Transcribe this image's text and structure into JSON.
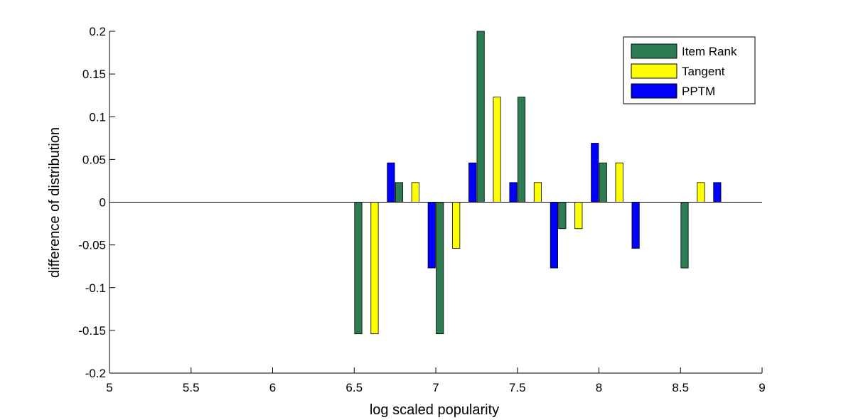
{
  "chart_data": {
    "type": "bar",
    "title": "",
    "xlabel": "log scaled popularity",
    "ylabel": "difference of distribution",
    "xlim": [
      5,
      9
    ],
    "ylim": [
      -0.2,
      0.2
    ],
    "xticks": [
      "5",
      "5.5",
      "6",
      "6.5",
      "7",
      "7.5",
      "8",
      "8.5",
      "9"
    ],
    "yticks": [
      "-0.2",
      "-0.15",
      "-0.1",
      "-0.05",
      "0",
      "0.05",
      "0.1",
      "0.15",
      "0.2"
    ],
    "grid": false,
    "legend_position": "top-right",
    "x": [
      6.625,
      6.875,
      7.125,
      7.375,
      7.625,
      7.875,
      8.125,
      8.625
    ],
    "series": [
      {
        "name": "Item Rank",
        "color": "#2e7d52",
        "values": [
          -0.154,
          0.023,
          -0.154,
          0.2,
          0.123,
          -0.031,
          0.046,
          -0.077
        ]
      },
      {
        "name": "Tangent",
        "color": "#ffff00",
        "values": [
          -0.154,
          0.023,
          -0.054,
          0.123,
          0.023,
          -0.031,
          0.046,
          0.023
        ]
      },
      {
        "name": "PPTM",
        "color": "#0000ff",
        "values": [
          0.046,
          -0.077,
          0.046,
          0.023,
          -0.077,
          0.069,
          -0.054,
          0.023
        ]
      }
    ]
  }
}
